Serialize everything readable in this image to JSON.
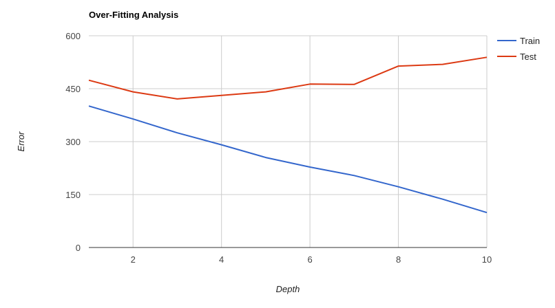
{
  "chart_data": {
    "type": "line",
    "title": "Over-Fitting Analysis",
    "xlabel": "Depth",
    "ylabel": "Error",
    "x": [
      1,
      2,
      3,
      4,
      5,
      6,
      7,
      8,
      9,
      10
    ],
    "xlim": [
      1,
      10
    ],
    "ylim": [
      0,
      600
    ],
    "x_ticks": [
      "2",
      "4",
      "6",
      "8",
      "10"
    ],
    "y_ticks": [
      "0",
      "150",
      "300",
      "450",
      "600"
    ],
    "grid": true,
    "legend_position": "right",
    "series": [
      {
        "name": "Train",
        "color": "#3366cc",
        "values": [
          401,
          364,
          325,
          291,
          255,
          228,
          204,
          172,
          137,
          99
        ]
      },
      {
        "name": "Test",
        "color": "#dc3912",
        "values": [
          474,
          441,
          421,
          431,
          441,
          463,
          462,
          514,
          519,
          539
        ]
      }
    ]
  }
}
